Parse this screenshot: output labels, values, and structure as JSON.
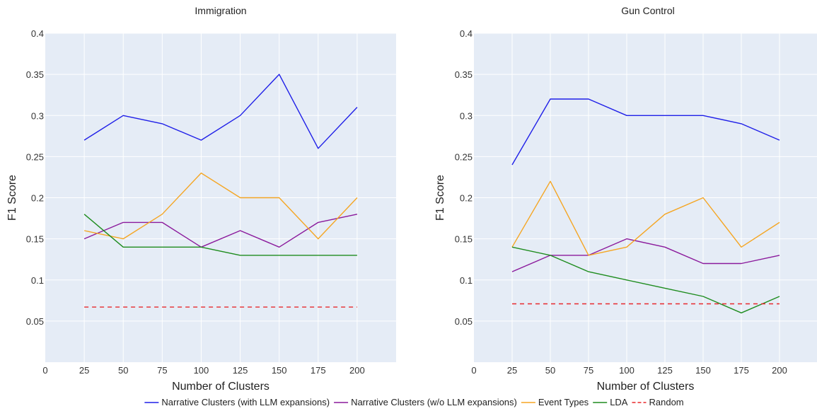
{
  "chart_data": [
    {
      "type": "line",
      "title": "Immigration",
      "xlabel": "Number of Clusters",
      "ylabel": "F1 Score",
      "xlim": [
        0,
        225
      ],
      "ylim": [
        0,
        0.4
      ],
      "x_ticks": [
        "0",
        "25",
        "50",
        "75",
        "100",
        "125",
        "150",
        "175",
        "200"
      ],
      "y_ticks": [
        "0.05",
        "0.1",
        "0.15",
        "0.2",
        "0.25",
        "0.3",
        "0.35",
        "0.4"
      ],
      "grid": true,
      "x": [
        25,
        50,
        75,
        100,
        125,
        150,
        175,
        200
      ],
      "series": [
        {
          "name": "Narrative Clusters (with LLM expansions)",
          "color": "#1f1fe8",
          "dash": "solid",
          "values": [
            0.27,
            0.3,
            0.29,
            0.27,
            0.3,
            0.35,
            0.26,
            0.31
          ]
        },
        {
          "name": "Narrative Clusters (w/o LLM expansions)",
          "color": "#8b1a9c",
          "dash": "solid",
          "values": [
            0.15,
            0.17,
            0.17,
            0.14,
            0.16,
            0.14,
            0.17,
            0.18
          ]
        },
        {
          "name": "Event Types",
          "color": "#f5a623",
          "dash": "solid",
          "values": [
            0.16,
            0.15,
            0.18,
            0.23,
            0.2,
            0.2,
            0.15,
            0.2
          ]
        },
        {
          "name": "LDA",
          "color": "#1e8c1e",
          "dash": "solid",
          "values": [
            0.18,
            0.14,
            0.14,
            0.14,
            0.13,
            0.13,
            0.13,
            0.13
          ]
        },
        {
          "name": "Random",
          "color": "#e8282c",
          "dash": "dashed",
          "values": [
            0.067,
            0.067,
            0.067,
            0.067,
            0.067,
            0.067,
            0.067,
            0.067
          ]
        }
      ]
    },
    {
      "type": "line",
      "title": "Gun Control",
      "xlabel": "Number of Clusters",
      "ylabel": "F1 Score",
      "xlim": [
        0,
        225
      ],
      "ylim": [
        0,
        0.4
      ],
      "x_ticks": [
        "0",
        "25",
        "50",
        "75",
        "100",
        "125",
        "150",
        "175",
        "200"
      ],
      "y_ticks": [
        "0.05",
        "0.1",
        "0.15",
        "0.2",
        "0.25",
        "0.3",
        "0.35",
        "0.4"
      ],
      "grid": true,
      "x": [
        25,
        50,
        75,
        100,
        125,
        150,
        175,
        200
      ],
      "series": [
        {
          "name": "Narrative Clusters (with LLM expansions)",
          "color": "#1f1fe8",
          "dash": "solid",
          "values": [
            0.24,
            0.32,
            0.32,
            0.3,
            0.3,
            0.3,
            0.29,
            0.27
          ]
        },
        {
          "name": "Narrative Clusters (w/o LLM expansions)",
          "color": "#8b1a9c",
          "dash": "solid",
          "values": [
            0.11,
            0.13,
            0.13,
            0.15,
            0.14,
            0.12,
            0.12,
            0.13
          ]
        },
        {
          "name": "Event Types",
          "color": "#f5a623",
          "dash": "solid",
          "values": [
            0.14,
            0.22,
            0.13,
            0.14,
            0.18,
            0.2,
            0.14,
            0.17
          ]
        },
        {
          "name": "LDA",
          "color": "#1e8c1e",
          "dash": "solid",
          "values": [
            0.14,
            0.13,
            0.11,
            0.1,
            0.09,
            0.08,
            0.06,
            0.08
          ]
        },
        {
          "name": "Random",
          "color": "#e8282c",
          "dash": "dashed",
          "values": [
            0.071,
            0.071,
            0.071,
            0.071,
            0.071,
            0.071,
            0.071,
            0.071
          ]
        }
      ]
    }
  ],
  "legend": {
    "placement": "bottom-center",
    "items": [
      {
        "label": "Narrative Clusters (with LLM expansions)",
        "color": "#1f1fe8",
        "dash": "solid"
      },
      {
        "label": "Narrative Clusters (w/o LLM expansions)",
        "color": "#8b1a9c",
        "dash": "solid"
      },
      {
        "label": "Event Types",
        "color": "#f5a623",
        "dash": "solid"
      },
      {
        "label": "LDA",
        "color": "#1e8c1e",
        "dash": "solid"
      },
      {
        "label": "Random",
        "color": "#e8282c",
        "dash": "dashed"
      }
    ]
  },
  "colors": {
    "plot_background": "#e5ecf6",
    "gridline": "#ffffff"
  }
}
